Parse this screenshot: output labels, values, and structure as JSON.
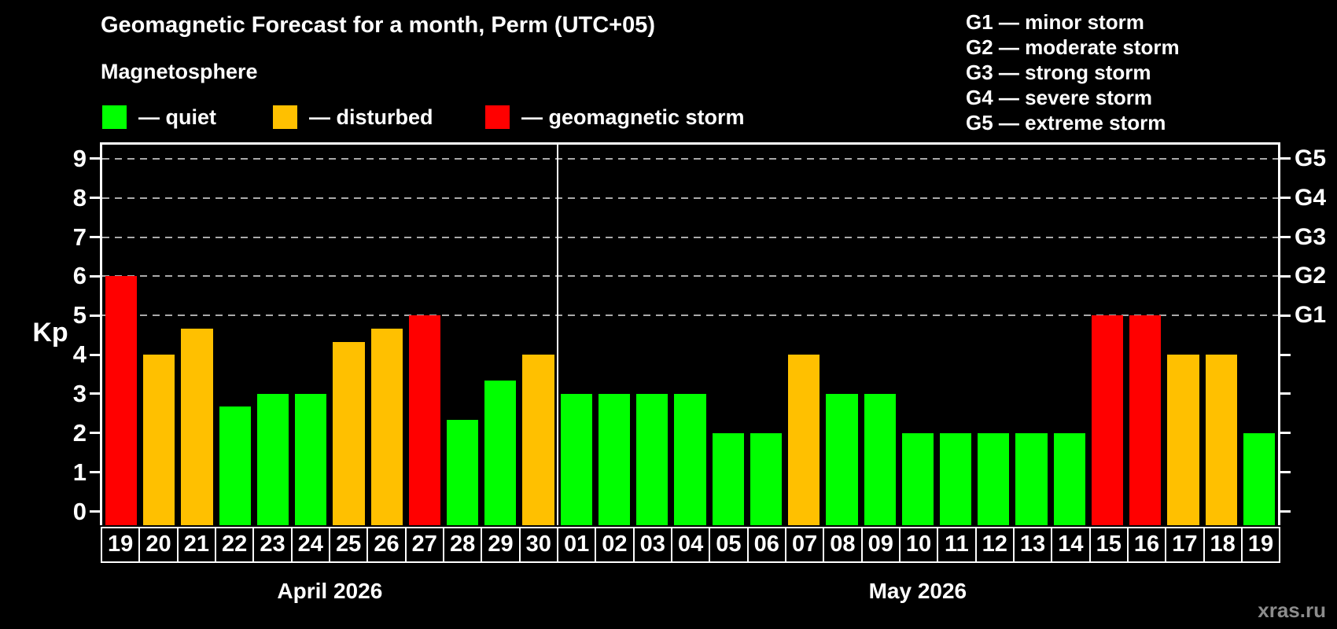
{
  "header": {
    "title": "Geomagnetic Forecast for a month, Perm (UTC+05)"
  },
  "magnetosphere_legend": {
    "title": "Magnetosphere",
    "items": [
      {
        "name": "quiet",
        "label": "— quiet",
        "color": "#00ff00"
      },
      {
        "name": "disturbed",
        "label": "— disturbed",
        "color": "#ffc000"
      },
      {
        "name": "storm",
        "label": "— geomagnetic storm",
        "color": "#ff0000"
      }
    ]
  },
  "g_scale_legend": {
    "items": [
      "G1 — minor storm",
      "G2 — moderate storm",
      "G3 — strong storm",
      "G4 — severe storm",
      "G5 — extreme storm"
    ]
  },
  "footer": {
    "watermark": "xras.ru"
  },
  "chart_data": {
    "type": "bar",
    "title": "Geomagnetic Forecast for a month, Perm (UTC+05)",
    "ylabel": "Kp",
    "ylim": [
      0,
      9
    ],
    "y_ticks": [
      0,
      1,
      2,
      3,
      4,
      5,
      6,
      7,
      8,
      9
    ],
    "grid": "dashed horizontal gridlines only at Kp 5,6,7,8,9 (G1-G5 storm levels)",
    "legend_position": "top",
    "right_axis_labels": [
      {
        "value": 5,
        "label": "G1"
      },
      {
        "value": 6,
        "label": "G2"
      },
      {
        "value": 7,
        "label": "G3"
      },
      {
        "value": 8,
        "label": "G4"
      },
      {
        "value": 9,
        "label": "G5"
      }
    ],
    "status_colors": {
      "quiet": "#00ff00",
      "disturbed": "#ffc000",
      "storm": "#ff0000"
    },
    "months": [
      {
        "label": "April 2026",
        "days": [
          "19",
          "20",
          "21",
          "22",
          "23",
          "24",
          "25",
          "26",
          "27",
          "28",
          "29",
          "30"
        ],
        "values": [
          6,
          4,
          4.67,
          2.67,
          3,
          3,
          4.33,
          4.67,
          5,
          2.33,
          3.33,
          4
        ],
        "statuses": [
          "storm",
          "disturbed",
          "disturbed",
          "quiet",
          "quiet",
          "quiet",
          "disturbed",
          "disturbed",
          "storm",
          "quiet",
          "quiet",
          "disturbed"
        ]
      },
      {
        "label": "May 2026",
        "days": [
          "01",
          "02",
          "03",
          "04",
          "05",
          "06",
          "07",
          "08",
          "09",
          "10",
          "11",
          "12",
          "13",
          "14",
          "15",
          "16",
          "17",
          "18",
          "19"
        ],
        "values": [
          3,
          3,
          3,
          3,
          2,
          2,
          4,
          3,
          3,
          2,
          2,
          2,
          2,
          2,
          5,
          5,
          4,
          4,
          2
        ],
        "statuses": [
          "quiet",
          "quiet",
          "quiet",
          "quiet",
          "quiet",
          "quiet",
          "disturbed",
          "quiet",
          "quiet",
          "quiet",
          "quiet",
          "quiet",
          "quiet",
          "quiet",
          "storm",
          "storm",
          "disturbed",
          "disturbed",
          "quiet"
        ]
      }
    ]
  }
}
